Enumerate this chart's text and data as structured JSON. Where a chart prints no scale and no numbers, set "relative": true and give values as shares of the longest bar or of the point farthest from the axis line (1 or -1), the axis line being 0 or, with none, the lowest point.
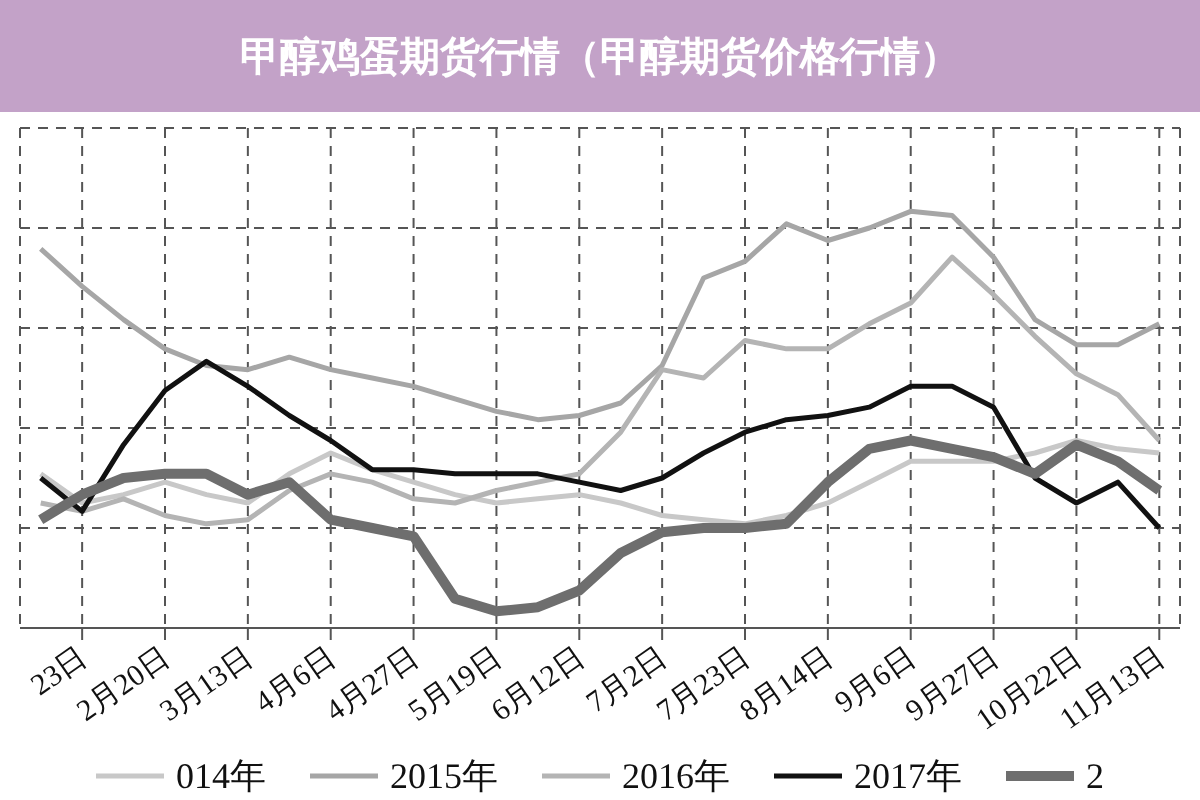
{
  "chart_data": {
    "type": "line",
    "title": "甲醇鸡蛋期货行情（甲醇期货价格行情）",
    "relative": true,
    "grid": true,
    "legend": "bottom",
    "marker": "none",
    "line_style": "solid",
    "categories": [
      null,
      "23日",
      null,
      "2月20日",
      null,
      "3月13日",
      null,
      "4月6日",
      null,
      "4月27日",
      null,
      "5月19日",
      null,
      "6月12日",
      null,
      "7月2日",
      null,
      "7月23日",
      null,
      "8月14日",
      null,
      "9月6日",
      null,
      "9月27日",
      null,
      "10月22日",
      null,
      "11月13日"
    ],
    "series": [
      {
        "name": "014年",
        "color": "#c8c8c8",
        "values": [
          0.37,
          0.3,
          0.32,
          0.35,
          0.32,
          0.3,
          0.37,
          0.42,
          0.38,
          0.35,
          0.32,
          0.3,
          0.31,
          0.32,
          0.3,
          0.27,
          0.26,
          0.25,
          0.27,
          0.3,
          0.35,
          0.4,
          0.4,
          0.4,
          0.42,
          0.45,
          0.43,
          0.42
        ]
      },
      {
        "name": "2015年",
        "color": "#a6a6a6",
        "values": [
          0.91,
          0.82,
          0.74,
          0.67,
          0.63,
          0.62,
          0.65,
          0.62,
          0.6,
          0.58,
          0.55,
          0.52,
          0.5,
          0.51,
          0.54,
          0.63,
          0.84,
          0.88,
          0.97,
          0.93,
          0.96,
          1,
          0.99,
          0.89,
          0.74,
          0.68,
          0.68,
          0.73
        ]
      },
      {
        "name": "2016年",
        "color": "#b4b4b4",
        "values": [
          0.3,
          0.28,
          0.31,
          0.27,
          0.25,
          0.26,
          0.33,
          0.37,
          0.35,
          0.31,
          0.3,
          0.33,
          0.35,
          0.37,
          0.47,
          0.62,
          0.6,
          0.69,
          0.67,
          0.67,
          0.73,
          0.78,
          0.89,
          0.8,
          0.7,
          0.61,
          0.56,
          0.45
        ]
      },
      {
        "name": "2017年",
        "color": "#111111",
        "values": [
          0.36,
          0.28,
          0.44,
          0.57,
          0.64,
          0.58,
          0.51,
          0.45,
          0.38,
          0.38,
          0.37,
          0.37,
          0.37,
          0.35,
          0.33,
          0.36,
          0.42,
          0.47,
          0.5,
          0.51,
          0.53,
          0.58,
          0.58,
          0.53,
          0.36,
          0.3,
          0.35,
          0.24
        ]
      },
      {
        "name": "2",
        "color": "#6e6e6e",
        "values": [
          0.26,
          0.32,
          0.36,
          0.37,
          0.37,
          0.32,
          0.35,
          0.26,
          0.24,
          0.22,
          0.07,
          0.04,
          0.05,
          0.09,
          0.18,
          0.23,
          0.24,
          0.24,
          0.25,
          0.35,
          0.43,
          0.45,
          0.43,
          0.41,
          0.37,
          0.44,
          0.4,
          0.33
        ]
      }
    ]
  }
}
